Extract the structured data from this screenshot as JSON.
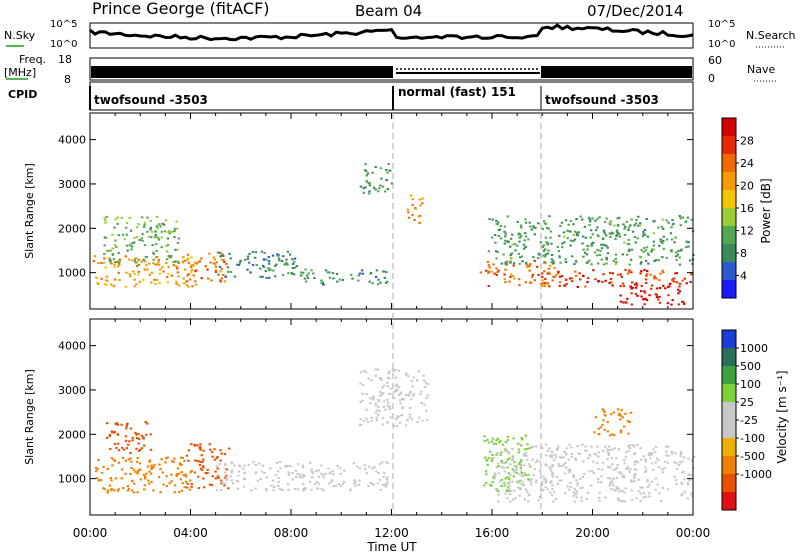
{
  "header": {
    "station": "Prince George (fitACF)",
    "beam": "Beam 04",
    "date": "07/Dec/2014"
  },
  "aux_panels": {
    "nsky": {
      "label": "N.Sky",
      "tick_top": "10^5",
      "tick_bottom": "10^0"
    },
    "nsearch": {
      "label": "N.Search",
      "tick_top": "10^5",
      "tick_bottom": "10^0"
    },
    "freq": {
      "label": "Freq.",
      "unit": "[MHz]",
      "tick_top": "18",
      "tick_bottom": "8"
    },
    "nave": {
      "label": "Nave",
      "tick_top": "60",
      "tick_bottom": "0"
    },
    "cpid": {
      "label": "CPID",
      "segments": [
        {
          "name": "twofsound -3503",
          "start_h": 0,
          "end_h": 12
        },
        {
          "name": "normal (fast) 151",
          "start_h": 12,
          "end_h": 18
        },
        {
          "name": "twofsound -3503",
          "start_h": 18,
          "end_h": 24
        }
      ]
    }
  },
  "colors": {
    "power": [
      "#1a1aff",
      "#2a5bd0",
      "#3a8a5a",
      "#52a852",
      "#9acd32",
      "#f5c400",
      "#f59a00",
      "#f06a00",
      "#e62a00",
      "#d40000"
    ],
    "velocity": [
      "#1a3dd8",
      "#2a6e5a",
      "#3fa03f",
      "#7ad13a",
      "#c8c8c8",
      "#c8c8c8",
      "#f0b000",
      "#f08000",
      "#e85000",
      "#e01010"
    ]
  },
  "chart_data": [
    {
      "type": "heatmap",
      "panel": "power",
      "xlabel": "Time UT",
      "ylabel": "Slant Range [km]",
      "x_ticks": [
        "00:00",
        "04:00",
        "08:00",
        "12:00",
        "16:00",
        "20:00",
        "00:00"
      ],
      "x_range_h": [
        0,
        24
      ],
      "y_ticks": [
        "1000",
        "2000",
        "3000",
        "4000"
      ],
      "y_range_km": [
        180,
        4600
      ],
      "colorbar": {
        "label": "Power [dB]",
        "ticks": [
          "4",
          "8",
          "12",
          "16",
          "20",
          "24",
          "28"
        ],
        "range": [
          0,
          32
        ]
      },
      "regions": [
        {
          "t0": 0.1,
          "t1": 4.2,
          "r0": 700,
          "r1": 1400,
          "v": 21
        },
        {
          "t0": 0.5,
          "t1": 3.5,
          "r0": 1200,
          "r1": 2300,
          "v": 12
        },
        {
          "t0": 3.8,
          "t1": 5.4,
          "r0": 800,
          "r1": 1500,
          "v": 24
        },
        {
          "t0": 5.0,
          "t1": 8.5,
          "r0": 900,
          "r1": 1500,
          "v": 8
        },
        {
          "t0": 8.5,
          "t1": 11.8,
          "r0": 750,
          "r1": 1100,
          "v": 9
        },
        {
          "t0": 10.7,
          "t1": 12.0,
          "r0": 2800,
          "r1": 3500,
          "v": 10
        },
        {
          "t0": 12.6,
          "t1": 13.2,
          "r0": 2100,
          "r1": 2800,
          "v": 22
        },
        {
          "t0": 15.5,
          "t1": 18.5,
          "r0": 700,
          "r1": 1300,
          "v": 24
        },
        {
          "t0": 15.8,
          "t1": 24.0,
          "r0": 1200,
          "r1": 2300,
          "v": 10
        },
        {
          "t0": 18.5,
          "t1": 24.0,
          "r0": 700,
          "r1": 1100,
          "v": 27
        },
        {
          "t0": 21.0,
          "t1": 23.7,
          "r0": 300,
          "r1": 750,
          "v": 30
        }
      ]
    },
    {
      "type": "heatmap",
      "panel": "velocity",
      "xlabel": "Time UT",
      "ylabel": "Slant Range [km]",
      "x_ticks": [
        "00:00",
        "04:00",
        "08:00",
        "12:00",
        "16:00",
        "20:00",
        "00:00"
      ],
      "x_range_h": [
        0,
        24
      ],
      "y_ticks": [
        "1000",
        "2000",
        "3000",
        "4000"
      ],
      "y_range_km": [
        180,
        4600
      ],
      "colorbar": {
        "label": "Velocity [m s⁻¹]",
        "ticks": [
          "1000",
          "500",
          "100",
          "25",
          "-25",
          "-100",
          "-500",
          "-1000"
        ]
      },
      "regions": [
        {
          "t0": 0.1,
          "t1": 4.0,
          "r0": 700,
          "r1": 1500,
          "v": -200
        },
        {
          "t0": 0.6,
          "t1": 2.5,
          "r0": 1600,
          "r1": 2300,
          "v": -600
        },
        {
          "t0": 3.8,
          "t1": 5.5,
          "r0": 800,
          "r1": 1800,
          "v": -550
        },
        {
          "t0": 5.0,
          "t1": 11.8,
          "r0": 750,
          "r1": 1400,
          "v": 0
        },
        {
          "t0": 10.7,
          "t1": 13.4,
          "r0": 2200,
          "r1": 3500,
          "v": 0
        },
        {
          "t0": 15.6,
          "t1": 17.5,
          "r0": 700,
          "r1": 2000,
          "v": 80
        },
        {
          "t0": 16.0,
          "t1": 24.0,
          "r0": 500,
          "r1": 1800,
          "v": 0
        },
        {
          "t0": 20.0,
          "t1": 21.5,
          "r0": 2000,
          "r1": 2600,
          "v": -300
        }
      ]
    }
  ]
}
